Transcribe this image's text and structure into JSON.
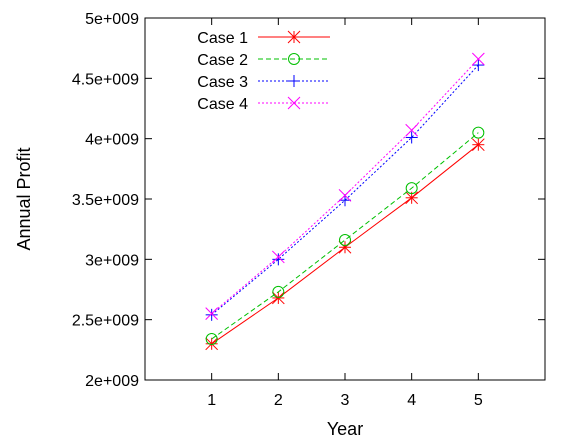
{
  "chart_data": {
    "type": "line",
    "title": "",
    "xlabel": "Year",
    "ylabel": "Annual Profit",
    "x": [
      1,
      2,
      3,
      4,
      5
    ],
    "xlim": [
      0,
      6
    ],
    "ylim": [
      2000000000,
      5000000000
    ],
    "xticks": [
      1,
      2,
      3,
      4,
      5
    ],
    "xtick_labels": [
      "1",
      "2",
      "3",
      "4",
      "5"
    ],
    "yticks": [
      2000000000,
      2500000000,
      3000000000,
      3500000000,
      4000000000,
      4500000000,
      5000000000
    ],
    "ytick_labels": [
      "2e+009",
      "2.5e+009",
      "3e+009",
      "3.5e+009",
      "4e+009",
      "4.5e+009",
      "5e+009"
    ],
    "grid": false,
    "legend_position": "top-left",
    "series": [
      {
        "name": "Case 1",
        "values": [
          2300000000,
          2680000000,
          3100000000,
          3510000000,
          3950000000
        ],
        "color": "#ff0000",
        "line_style": "solid",
        "marker": "star-icon"
      },
      {
        "name": "Case 2",
        "values": [
          2340000000,
          2730000000,
          3160000000,
          3590000000,
          4050000000
        ],
        "color": "#00c000",
        "line_style": "dashed",
        "marker": "circle-icon"
      },
      {
        "name": "Case 3",
        "values": [
          2540000000,
          3000000000,
          3490000000,
          4010000000,
          4610000000
        ],
        "color": "#0000ff",
        "line_style": "dotted",
        "marker": "plus-icon"
      },
      {
        "name": "Case 4",
        "values": [
          2550000000,
          3020000000,
          3530000000,
          4070000000,
          4660000000
        ],
        "color": "#ff00ff",
        "line_style": "dotted",
        "marker": "x-icon"
      }
    ]
  }
}
